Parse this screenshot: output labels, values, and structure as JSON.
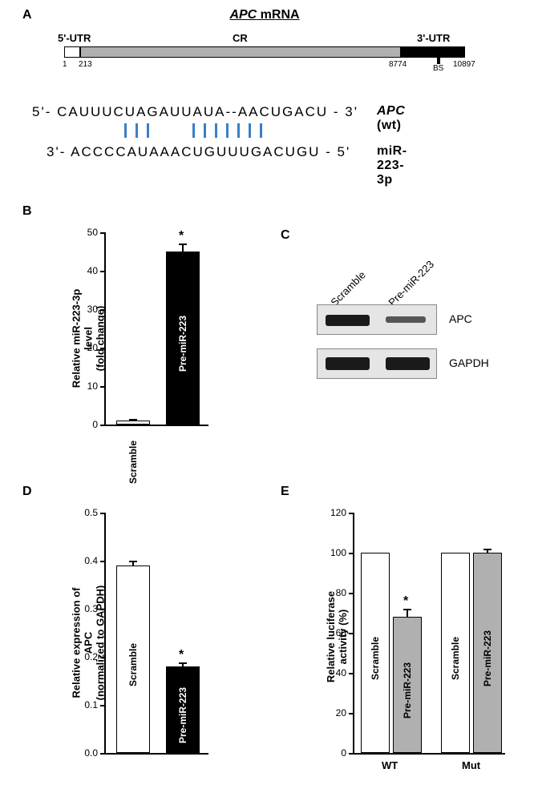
{
  "panelA": {
    "label": "A",
    "title_italic": "APC",
    "title_rest": " mRNA",
    "utr5": "5'-UTR",
    "cr": "CR",
    "utr3": "3'-UTR",
    "pos1": "1",
    "pos213": "213",
    "pos8774": "8774",
    "pos10897": "10897",
    "bs": "BS",
    "seq_apc": "5'- CAUUUCUAGAUUAUA--AACUGACU - 3'",
    "seq_mir": "3'- ACCCCAUAAACUGUUUGACUGU - 5'",
    "seq_apc_label_i": "APC",
    "seq_apc_label_n": " (wt)",
    "seq_mir_label": "miR-223-3p"
  },
  "panelB": {
    "label": "B",
    "ylabel": "Relative miR-223-3p level\n(fold change)",
    "ylim": [
      0,
      50
    ],
    "ytick_step": 10,
    "bars": [
      {
        "name": "Scramble",
        "value": 1,
        "color": "#ffffff",
        "text_color": "#000",
        "err": 0.5
      },
      {
        "name": "Pre-miR-223",
        "value": 45,
        "color": "#000000",
        "text_color": "#fff",
        "err": 2,
        "sig": "*"
      }
    ]
  },
  "panelC": {
    "label": "C",
    "lanes": [
      "Scramble",
      "Pre-miR-223"
    ],
    "rows": [
      "APC",
      "GAPDH"
    ]
  },
  "panelD": {
    "label": "D",
    "ylabel": "Relative expression of APC\n(normalized to GAPDH)",
    "ylim": [
      0.0,
      0.5
    ],
    "ytick_step": 0.1,
    "bars": [
      {
        "name": "Scramble",
        "value": 0.39,
        "color": "#ffffff",
        "text_color": "#000",
        "err": 0.01
      },
      {
        "name": "Pre-miR-223",
        "value": 0.18,
        "color": "#000000",
        "text_color": "#fff",
        "err": 0.008,
        "sig": "*"
      }
    ]
  },
  "panelE": {
    "label": "E",
    "ylabel": "Relative luciferase activity (%)",
    "ylim": [
      0,
      120
    ],
    "ytick_step": 20,
    "groups": [
      {
        "name": "WT",
        "bars": [
          {
            "name": "Scramble",
            "value": 100,
            "color": "#ffffff",
            "err": 0
          },
          {
            "name": "Pre-miR-223",
            "value": 68,
            "color": "#b0b0b0",
            "err": 4,
            "sig": "*"
          }
        ]
      },
      {
        "name": "Mut",
        "bars": [
          {
            "name": "Scramble",
            "value": 100,
            "color": "#ffffff",
            "err": 0
          },
          {
            "name": "Pre-miR-223",
            "value": 100,
            "color": "#b0b0b0",
            "err": 2
          }
        ]
      }
    ]
  }
}
